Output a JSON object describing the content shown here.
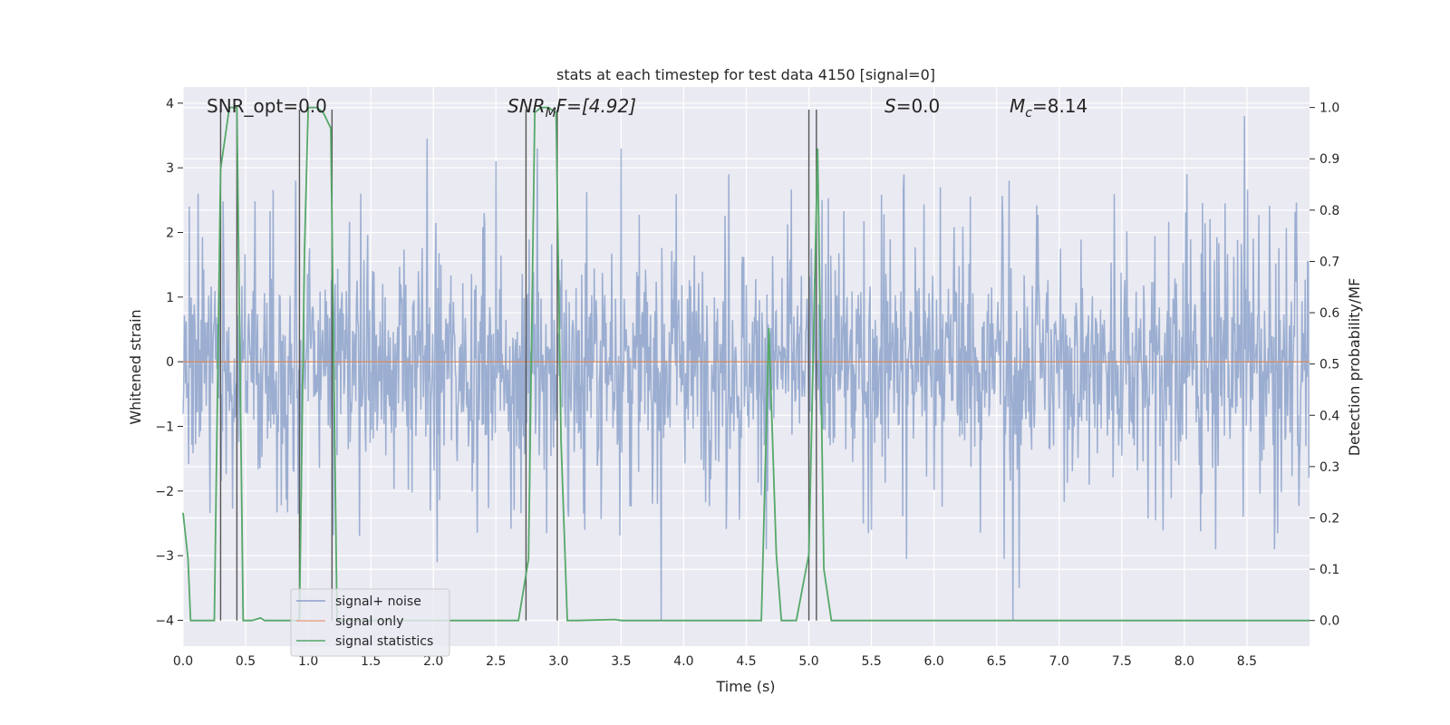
{
  "chart_data": {
    "type": "line",
    "title": "stats at each timestep for test data 4150 [signal=0]",
    "xlabel": "Time (s)",
    "ylabel": "Whitened strain",
    "ylabel_right": "Detection probability/MF",
    "xlim": [
      0.0,
      9.0
    ],
    "ylim": [
      -4.4,
      4.25
    ],
    "ylim_right": [
      -0.05,
      1.04
    ],
    "x_ticks": [
      0.0,
      0.5,
      1.0,
      1.5,
      2.0,
      2.5,
      3.0,
      3.5,
      4.0,
      4.5,
      5.0,
      5.5,
      6.0,
      6.5,
      7.0,
      7.5,
      8.0,
      8.5
    ],
    "x_tick_labels": [
      "0.0",
      "0.5",
      "1.0",
      "1.5",
      "2.0",
      "2.5",
      "3.0",
      "3.5",
      "4.0",
      "4.5",
      "5.0",
      "5.5",
      "6.0",
      "6.5",
      "7.0",
      "7.5",
      "8.0",
      "8.5"
    ],
    "y_ticks": [
      -4,
      -3,
      -2,
      -1,
      0,
      1,
      2,
      3,
      4
    ],
    "y_tick_labels": [
      "−4",
      "−3",
      "−2",
      "−1",
      "0",
      "1",
      "2",
      "3",
      "4"
    ],
    "y_ticks_right": [
      0.0,
      0.1,
      0.2,
      0.3,
      0.4,
      0.5,
      0.6,
      0.7,
      0.8,
      0.9,
      1.0
    ],
    "y_tick_labels_right": [
      "0.0",
      "0.1",
      "0.2",
      "0.3",
      "0.4",
      "0.5",
      "0.6",
      "0.7",
      "0.8",
      "0.9",
      "1.0"
    ],
    "annotations": {
      "snr_opt": "SNR_opt=0.0",
      "snr_mf_main": "SNR",
      "snr_mf_sub": "M",
      "snr_mf_rest": "F=[4.92]",
      "s_label": "S",
      "s_value": "=0.0",
      "mc_main": "M",
      "mc_sub": "c",
      "mc_value": "=8.14"
    },
    "legend": {
      "placement": "lower-left",
      "entries": [
        "signal+ noise",
        "signal only",
        "signal statistics"
      ]
    },
    "series": [
      {
        "name": "signal+ noise",
        "axis": "left",
        "kind": "noise",
        "sample_rate": 200,
        "duration": 9.0,
        "spikes": [
          [
            0.05,
            2.4
          ],
          [
            0.12,
            2.6
          ],
          [
            0.9,
            2.8
          ],
          [
            1.42,
            2.6
          ],
          [
            1.95,
            3.45
          ],
          [
            2.5,
            3.1
          ],
          [
            2.83,
            3.3
          ],
          [
            3.5,
            3.3
          ],
          [
            4.36,
            2.9
          ],
          [
            5.76,
            2.9
          ],
          [
            6.05,
            2.7
          ],
          [
            6.6,
            2.8
          ],
          [
            8.02,
            2.9
          ],
          [
            8.48,
            3.8
          ],
          [
            2.03,
            -3.1
          ],
          [
            3.82,
            -4.0
          ],
          [
            4.66,
            -2.9
          ],
          [
            5.78,
            -3.05
          ],
          [
            6.56,
            -3.05
          ],
          [
            6.63,
            -4.0
          ],
          [
            6.68,
            -3.5
          ],
          [
            8.25,
            -2.9
          ],
          [
            8.72,
            -2.9
          ]
        ]
      },
      {
        "name": "signal only",
        "axis": "left",
        "kind": "line",
        "points": [
          [
            0.0,
            0.0
          ],
          [
            9.0,
            0.0
          ]
        ]
      },
      {
        "name": "signal statistics",
        "axis": "right",
        "kind": "line",
        "points": [
          [
            0.0,
            0.21
          ],
          [
            0.04,
            0.12
          ],
          [
            0.06,
            0.0
          ],
          [
            0.25,
            0.0
          ],
          [
            0.3,
            0.88
          ],
          [
            0.37,
            1.0
          ],
          [
            0.43,
            1.0
          ],
          [
            0.48,
            0.0
          ],
          [
            0.55,
            0.0
          ],
          [
            0.62,
            0.005
          ],
          [
            0.65,
            0.0
          ],
          [
            0.85,
            0.0
          ],
          [
            0.93,
            0.0
          ],
          [
            0.97,
            0.72
          ],
          [
            1.0,
            1.0
          ],
          [
            1.07,
            1.0
          ],
          [
            1.12,
            0.99
          ],
          [
            1.18,
            0.96
          ],
          [
            1.23,
            0.0
          ],
          [
            1.3,
            0.0
          ],
          [
            2.0,
            0.0
          ],
          [
            2.68,
            0.0
          ],
          [
            2.76,
            0.12
          ],
          [
            2.81,
            0.99
          ],
          [
            2.86,
            1.0
          ],
          [
            2.92,
            1.0
          ],
          [
            2.98,
            0.99
          ],
          [
            3.02,
            0.35
          ],
          [
            3.07,
            0.0
          ],
          [
            3.15,
            0.0
          ],
          [
            3.45,
            0.002
          ],
          [
            3.5,
            0.0
          ],
          [
            4.5,
            0.0
          ],
          [
            4.62,
            0.0
          ],
          [
            4.68,
            0.57
          ],
          [
            4.74,
            0.13
          ],
          [
            4.78,
            0.0
          ],
          [
            4.9,
            0.0
          ],
          [
            5.0,
            0.13
          ],
          [
            5.07,
            0.92
          ],
          [
            5.12,
            0.1
          ],
          [
            5.18,
            0.0
          ],
          [
            6.0,
            0.0
          ],
          [
            9.0,
            0.0
          ]
        ]
      }
    ],
    "vertical_markers": [
      0.3,
      0.43,
      0.93,
      1.19,
      2.74,
      2.99,
      5.0,
      5.06
    ]
  }
}
